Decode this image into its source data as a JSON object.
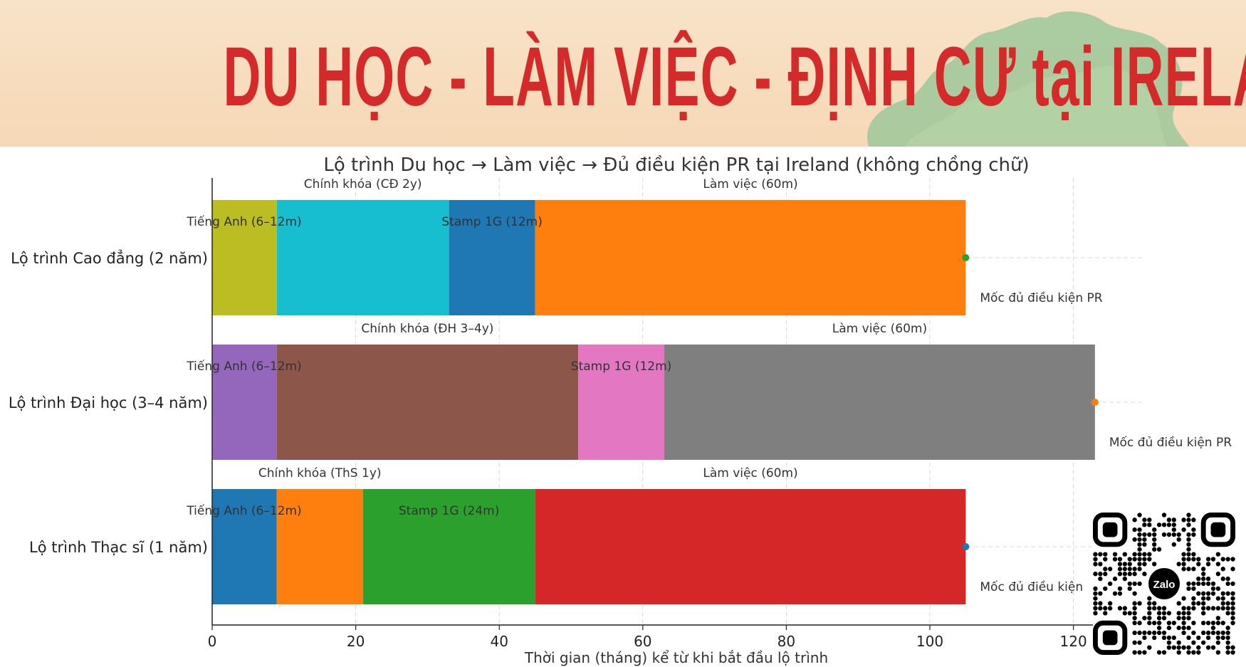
{
  "banner": {
    "title": "DU HỌC - LÀM VIỆC - ĐỊNH CƯ tại IRELAND"
  },
  "qr": {
    "logo_text": "Zalo"
  },
  "chart_data": {
    "type": "bar",
    "orientation": "horizontal",
    "stacked": true,
    "title": "Lộ trình Du học → Làm việc → Đủ điều kiện PR tại Ireland (không chồng chữ)",
    "xlabel": "Thời gian (tháng) kể từ khi bắt đầu lộ trình",
    "ylabel": "",
    "xlim": [
      0,
      122
    ],
    "xticks": [
      0,
      20,
      40,
      60,
      80,
      100,
      120
    ],
    "grid": true,
    "rows": [
      {
        "label": "Lộ trình Cao đẳng (2 năm)",
        "segments": [
          {
            "name": "Tiếng Anh (6–12m)",
            "start": 0,
            "duration": 9,
            "color": "#bcbd22"
          },
          {
            "name": "Chính khóa (CĐ 2y)",
            "start": 9,
            "duration": 24,
            "color": "#17becf"
          },
          {
            "name": "Stamp 1G (12m)",
            "start": 33,
            "duration": 12,
            "color": "#1f77b4"
          },
          {
            "name": "Làm việc (60m)",
            "start": 45,
            "duration": 60,
            "color": "#ff7f0e"
          }
        ],
        "milestone": {
          "x": 105,
          "color": "#2ca02c",
          "label": "Mốc đủ điều kiện PR"
        }
      },
      {
        "label": "Lộ trình Đại học (3–4 năm)",
        "segments": [
          {
            "name": "Tiếng Anh (6–12m)",
            "start": 0,
            "duration": 9,
            "color": "#9467bd"
          },
          {
            "name": "Chính khóa (ĐH 3–4y)",
            "start": 9,
            "duration": 42,
            "color": "#8c564b"
          },
          {
            "name": "Stamp 1G (12m)",
            "start": 51,
            "duration": 12,
            "color": "#e377c2"
          },
          {
            "name": "Làm việc (60m)",
            "start": 63,
            "duration": 60,
            "color": "#7f7f7f"
          }
        ],
        "milestone": {
          "x": 123,
          "color": "#ff7f0e",
          "label": "Mốc đủ điều kiện PR"
        }
      },
      {
        "label": "Lộ trình Thạc sĩ (1 năm)",
        "segments": [
          {
            "name": "Tiếng Anh (6–12m)",
            "start": 0,
            "duration": 9,
            "color": "#1f77b4"
          },
          {
            "name": "Chính khóa (ThS 1y)",
            "start": 9,
            "duration": 12,
            "color": "#ff7f0e"
          },
          {
            "name": "Stamp 1G (24m)",
            "start": 21,
            "duration": 24,
            "color": "#2ca02c"
          },
          {
            "name": "Làm việc (60m)",
            "start": 45,
            "duration": 60,
            "color": "#d62728"
          }
        ],
        "milestone": {
          "x": 105,
          "color": "#1f77b4",
          "label": "Mốc đủ điều kiện"
        }
      }
    ]
  }
}
